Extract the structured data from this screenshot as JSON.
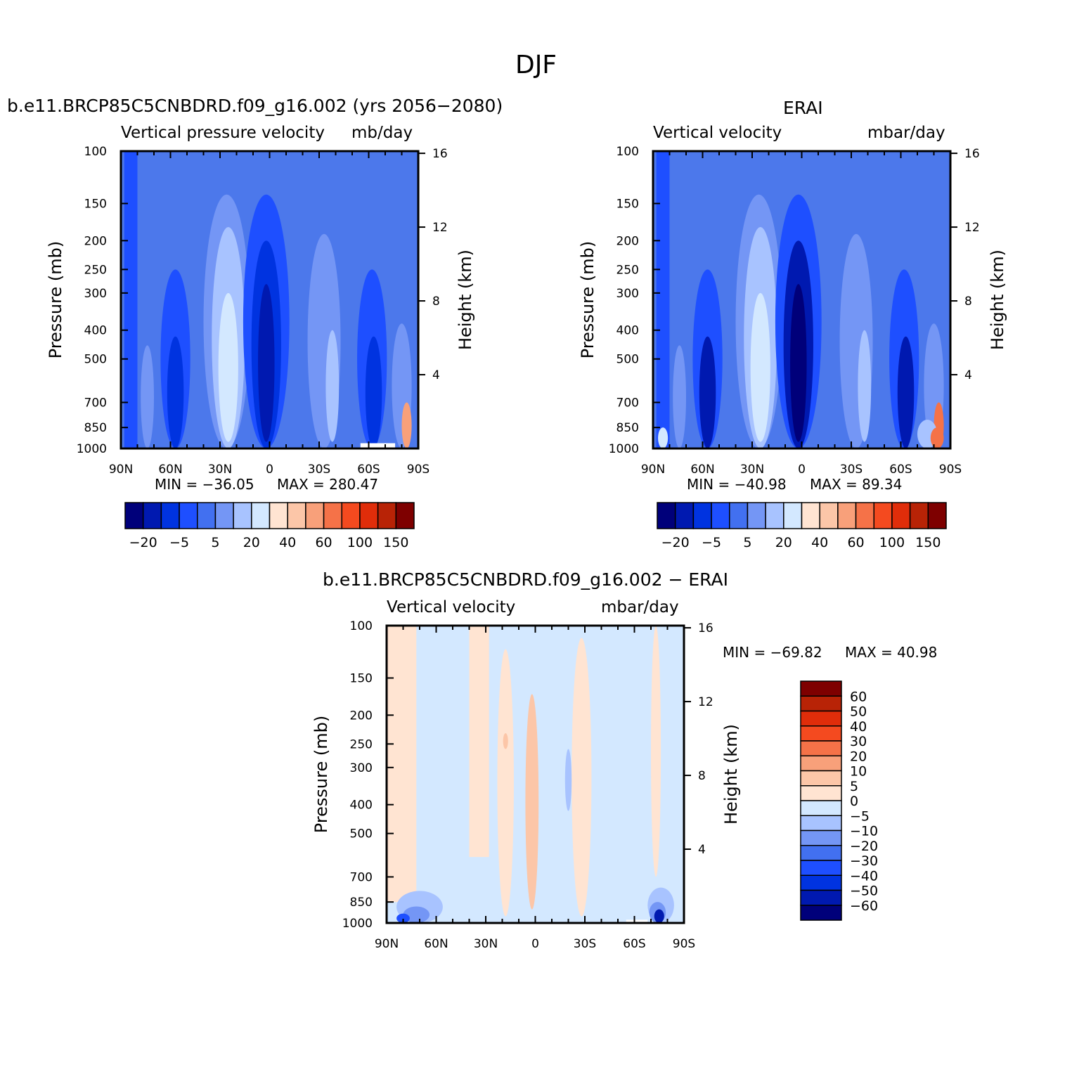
{
  "figure": {
    "title": "DJF"
  },
  "chart_data": [
    {
      "type": "heatmap",
      "panel": "model",
      "title": "b.e11.BRCP85C5CNBDRD.f09_g16.002 (yrs 2056−2080)",
      "variable_label": "Vertical pressure velocity",
      "units_label": "mb/day",
      "ylabel": "Pressure (mb)",
      "ylabel_right": "Height (km)",
      "x_ticks": [
        "90N",
        "60N",
        "30N",
        "0",
        "30S",
        "60S",
        "90S"
      ],
      "x_values": [
        90,
        60,
        30,
        0,
        -30,
        -60,
        -90
      ],
      "y_ticks": [
        "100",
        "150",
        "200",
        "250",
        "300",
        "400",
        "500",
        "700",
        "850",
        "1000"
      ],
      "y_values": [
        100,
        150,
        200,
        250,
        300,
        400,
        500,
        700,
        850,
        1000
      ],
      "y_scale": "log",
      "y_inverted": true,
      "right_ticks": [
        "16",
        "12",
        "8",
        "4"
      ],
      "right_values_km": [
        16,
        12,
        8,
        4
      ],
      "min_text": "MIN = −36.05",
      "max_text": "MAX = 280.47",
      "min_value": -36.05,
      "max_value": 280.47,
      "colorbar_orientation": "horizontal",
      "colorbar_labels": [
        "−20",
        "−5",
        "5",
        "20",
        "40",
        "60",
        "100",
        "150"
      ],
      "colorbar_colors": [
        "#00007a",
        "#0019b0",
        "#0033e0",
        "#1e4fff",
        "#4270f0",
        "#7496f5",
        "#a8c3ff",
        "#d3e8ff",
        "#ffe4d2",
        "#fcc6a8",
        "#f8a07a",
        "#f57248",
        "#f44a1f",
        "#e02d0a",
        "#b82306",
        "#7e0000"
      ],
      "field_colors": {
        "bg": "#4c78eb",
        "deep": "#0019b0",
        "darker": "#0033e0",
        "mid": "#1e4fff",
        "light": "#7496f5",
        "lighter": "#a8c3ff",
        "lightest": "#d3e8ff",
        "warm": "#f8a07a"
      }
    },
    {
      "type": "heatmap",
      "panel": "obs",
      "title": "ERAI",
      "variable_label": "Vertical velocity",
      "units_label": "mbar/day",
      "ylabel": "Pressure (mb)",
      "ylabel_right": "Height (km)",
      "x_ticks": [
        "90N",
        "60N",
        "30N",
        "0",
        "30S",
        "60S",
        "90S"
      ],
      "x_values": [
        90,
        60,
        30,
        0,
        -30,
        -60,
        -90
      ],
      "y_ticks": [
        "100",
        "150",
        "200",
        "250",
        "300",
        "400",
        "500",
        "700",
        "850",
        "1000"
      ],
      "y_values": [
        100,
        150,
        200,
        250,
        300,
        400,
        500,
        700,
        850,
        1000
      ],
      "y_scale": "log",
      "y_inverted": true,
      "right_ticks": [
        "16",
        "12",
        "8",
        "4"
      ],
      "right_values_km": [
        16,
        12,
        8,
        4
      ],
      "min_text": "MIN = −40.98",
      "max_text": "MAX =  89.34",
      "min_value": -40.98,
      "max_value": 89.34,
      "colorbar_orientation": "horizontal",
      "colorbar_labels": [
        "−20",
        "−5",
        "5",
        "20",
        "40",
        "60",
        "100",
        "150"
      ],
      "colorbar_colors": [
        "#00007a",
        "#0019b0",
        "#0033e0",
        "#1e4fff",
        "#4270f0",
        "#7496f5",
        "#a8c3ff",
        "#d3e8ff",
        "#ffe4d2",
        "#fcc6a8",
        "#f8a07a",
        "#f57248",
        "#f44a1f",
        "#e02d0a",
        "#b82306",
        "#7e0000"
      ],
      "field_colors": {
        "bg": "#4c78eb",
        "deep": "#00007a",
        "darker": "#0019b0",
        "mid": "#1e4fff",
        "light": "#7496f5",
        "lighter": "#a8c3ff",
        "lightest": "#d3e8ff",
        "warm": "#f57248"
      }
    },
    {
      "type": "heatmap",
      "panel": "difference",
      "title": "b.e11.BRCP85C5CNBDRD.f09_g16.002 − ERAI",
      "variable_label": "Vertical velocity",
      "units_label": "mbar/day",
      "ylabel": "Pressure (mb)",
      "ylabel_right": "Height (km)",
      "x_ticks": [
        "90N",
        "60N",
        "30N",
        "0",
        "30S",
        "60S",
        "90S"
      ],
      "x_values": [
        90,
        60,
        30,
        0,
        -30,
        -60,
        -90
      ],
      "y_ticks": [
        "100",
        "150",
        "200",
        "250",
        "300",
        "400",
        "500",
        "700",
        "850",
        "1000"
      ],
      "y_values": [
        100,
        150,
        200,
        250,
        300,
        400,
        500,
        700,
        850,
        1000
      ],
      "y_scale": "log",
      "y_inverted": true,
      "right_ticks": [
        "16",
        "12",
        "8",
        "4"
      ],
      "right_values_km": [
        16,
        12,
        8,
        4
      ],
      "min_text": "MIN = −69.82",
      "max_text": "MAX =   40.98",
      "min_value": -69.82,
      "max_value": 40.98,
      "colorbar_orientation": "vertical",
      "colorbar_labels": [
        "60",
        "50",
        "40",
        "30",
        "20",
        "10",
        "5",
        "0",
        "−5",
        "−10",
        "−20",
        "−30",
        "−40",
        "−50",
        "−60"
      ],
      "colorbar_colors": [
        "#7e0000",
        "#b82306",
        "#e02d0a",
        "#f44a1f",
        "#f57248",
        "#f8a07a",
        "#fcc6a8",
        "#ffe4d2",
        "#d3e8ff",
        "#a8c3ff",
        "#7496f5",
        "#4270f0",
        "#1e4fff",
        "#0033e0",
        "#0019b0",
        "#00007a"
      ],
      "field_colors": {
        "bg": "#d3e8ff",
        "warm": "#ffe4d2",
        "warmer": "#fcc6a8",
        "cool": "#a8c3ff",
        "cooler": "#7496f5",
        "cold": "#1e4fff",
        "coldest": "#0019b0"
      }
    }
  ]
}
